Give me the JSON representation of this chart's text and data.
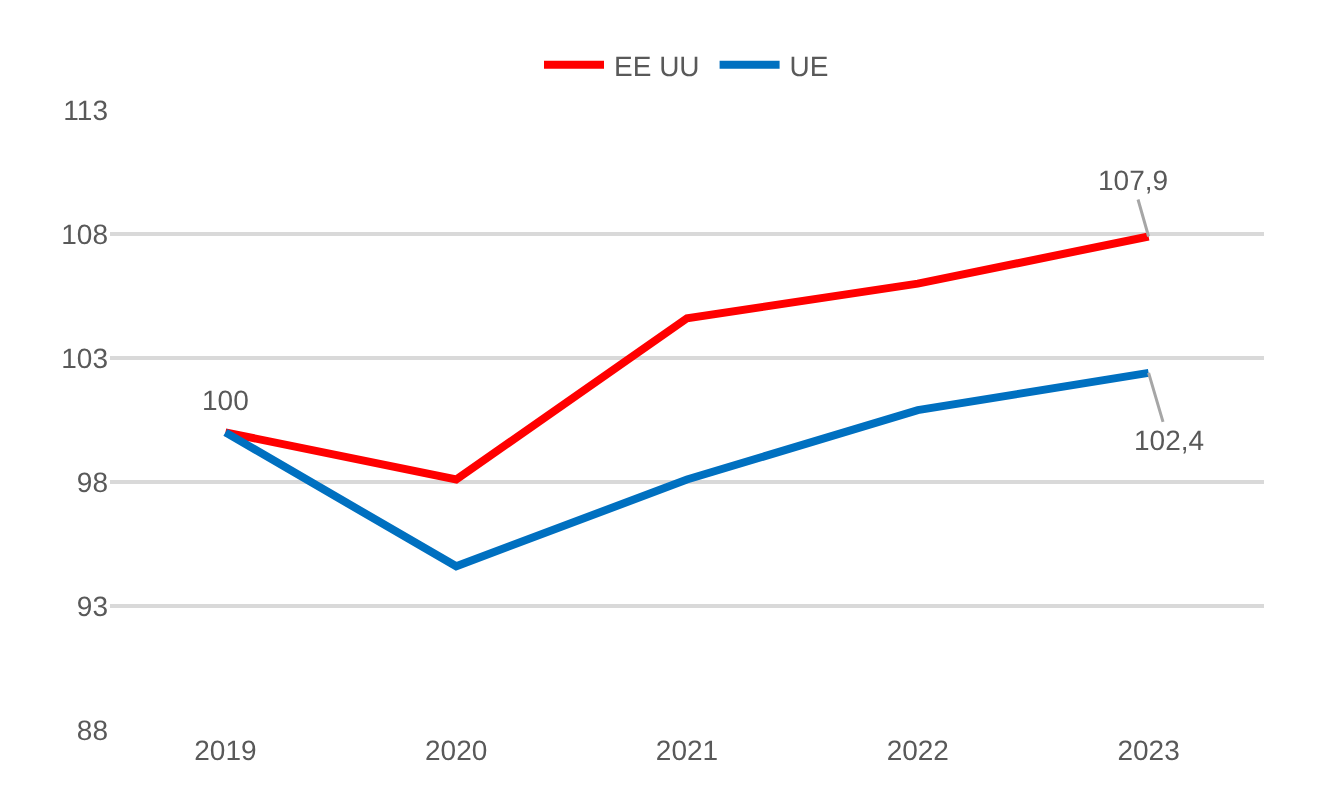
{
  "chart_data": {
    "type": "line",
    "categories": [
      "2019",
      "2020",
      "2021",
      "2022",
      "2023"
    ],
    "series": [
      {
        "name": "EE UU",
        "color": "#ff0000",
        "values": [
          100,
          98.1,
          104.6,
          106.0,
          107.9
        ],
        "value_labels": [
          "100",
          null,
          null,
          null,
          "107,9"
        ]
      },
      {
        "name": "UE",
        "color": "#0070c0",
        "values": [
          100,
          94.6,
          98.1,
          100.9,
          102.4
        ],
        "value_labels": [
          null,
          null,
          null,
          null,
          "102,4"
        ]
      }
    ],
    "ylim": [
      88,
      113
    ],
    "yticks": [
      88,
      93,
      98,
      103,
      108,
      113
    ],
    "grid": "y",
    "legend": "top",
    "marker": "none",
    "line_style": "solid"
  }
}
